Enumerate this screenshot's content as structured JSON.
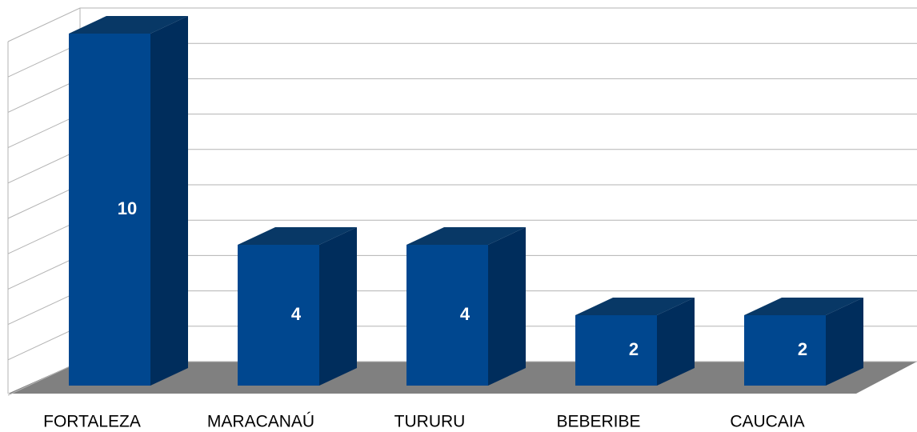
{
  "chart_data": {
    "type": "bar",
    "categories": [
      "FORTALEZA",
      "MARACANAÚ",
      "TURURU",
      "BEBERIBE",
      "CAUCAIA"
    ],
    "values": [
      10,
      4,
      4,
      2,
      2
    ],
    "color": "#00478f",
    "ylim": [
      0,
      10
    ],
    "yticks": [
      0,
      1,
      2,
      3,
      4,
      5,
      6,
      7,
      8,
      9,
      10
    ],
    "grid": true
  }
}
